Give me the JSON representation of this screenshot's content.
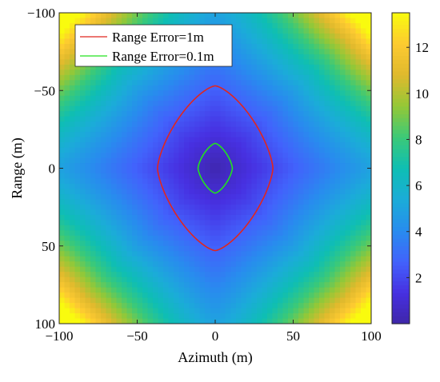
{
  "chart_data": {
    "type": "heatmap",
    "xlabel": "Azimuth (m)",
    "ylabel": "Range (m)",
    "xlim": [
      -100,
      100
    ],
    "ylim": [
      -100,
      100
    ],
    "y_axis_reversed": true,
    "x_ticks": [
      -100,
      -50,
      0,
      50,
      100
    ],
    "y_ticks": [
      -100,
      -50,
      0,
      50,
      100
    ],
    "x_tick_labels": [
      "−100",
      "−50",
      "0",
      "50",
      "100"
    ],
    "y_tick_labels": [
      "−100",
      "−50",
      "0",
      "50",
      "100"
    ],
    "colormap": "parula",
    "colorbar": {
      "range": [
        0,
        13.5
      ],
      "ticks": [
        2,
        4,
        6,
        8,
        10,
        12
      ],
      "tick_labels": [
        "2",
        "4",
        "6",
        "8",
        "10",
        "12"
      ]
    },
    "field_samples": [
      {
        "x": 0,
        "y": 0,
        "value": 0.2
      },
      {
        "x": 0,
        "y": -100,
        "value": 4.0
      },
      {
        "x": 0,
        "y": 100,
        "value": 4.0
      },
      {
        "x": -100,
        "y": 0,
        "value": 5.0
      },
      {
        "x": 100,
        "y": 0,
        "value": 5.0
      },
      {
        "x": -100,
        "y": -100,
        "value": 13.0
      },
      {
        "x": 100,
        "y": -100,
        "value": 13.0
      },
      {
        "x": -100,
        "y": 100,
        "value": 13.0
      },
      {
        "x": 100,
        "y": 100,
        "value": 13.0
      }
    ],
    "series": [
      {
        "name": "Range Error=1m",
        "type": "contour",
        "color": "#e0261f",
        "x_halfwidth": 37,
        "y_halfwidth": 53
      },
      {
        "name": "Range Error=0.1m",
        "type": "contour",
        "color": "#22e21f",
        "x_halfwidth": 11,
        "y_halfwidth": 16
      }
    ],
    "legend": {
      "placement": "top-left",
      "entries": [
        "Range Error=1m",
        "Range Error=0.1m"
      ]
    },
    "grid": false
  }
}
